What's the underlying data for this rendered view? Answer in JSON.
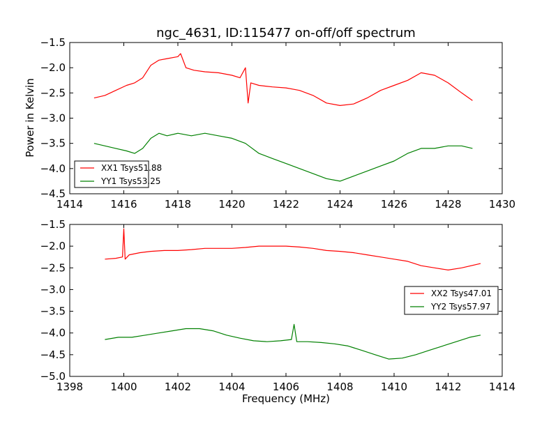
{
  "title": "ngc_4631, ID:115477 on-off/off spectrum",
  "ylabel": "Power in Kelvin",
  "xlabel": "Frequency (MHz)",
  "colors": {
    "XX": "#ff0000",
    "YY": "#008000"
  },
  "chart_data": [
    {
      "type": "line",
      "title": "ngc_4631, ID:115477 on-off/off spectrum",
      "ylabel": "Power in Kelvin",
      "xlabel": "",
      "xlim": [
        1414,
        1430
      ],
      "ylim": [
        -4.5,
        -1.5
      ],
      "xticks": [
        "1414",
        "1416",
        "1418",
        "1420",
        "1422",
        "1424",
        "1426",
        "1428",
        "1430"
      ],
      "yticks": [
        "−1.5",
        "−2.0",
        "−2.5",
        "−3.0",
        "−3.5",
        "−4.0",
        "−4.5"
      ],
      "legend": "lower-left",
      "series": [
        {
          "name": "XX1 Tsys51.88",
          "color": "#ff0000",
          "x": [
            1414.9,
            1415.3,
            1415.7,
            1416.1,
            1416.4,
            1416.7,
            1417.0,
            1417.3,
            1417.6,
            1418.0,
            1418.1,
            1418.3,
            1418.6,
            1419.0,
            1419.5,
            1420.0,
            1420.3,
            1420.5,
            1420.6,
            1420.7,
            1421.0,
            1421.5,
            1422.0,
            1422.5,
            1423.0,
            1423.5,
            1424.0,
            1424.5,
            1425.0,
            1425.5,
            1426.0,
            1426.5,
            1427.0,
            1427.5,
            1428.0,
            1428.5,
            1428.9
          ],
          "y": [
            -2.6,
            -2.55,
            -2.45,
            -2.35,
            -2.3,
            -2.2,
            -1.95,
            -1.85,
            -1.82,
            -1.78,
            -1.72,
            -2.0,
            -2.05,
            -2.08,
            -2.1,
            -2.15,
            -2.2,
            -2.0,
            -2.7,
            -2.3,
            -2.35,
            -2.38,
            -2.4,
            -2.45,
            -2.55,
            -2.7,
            -2.75,
            -2.72,
            -2.6,
            -2.45,
            -2.35,
            -2.25,
            -2.1,
            -2.15,
            -2.3,
            -2.5,
            -2.65
          ]
        },
        {
          "name": "YY1 Tsys53.25",
          "color": "#008000",
          "x": [
            1414.9,
            1415.3,
            1415.7,
            1416.1,
            1416.4,
            1416.7,
            1417.0,
            1417.3,
            1417.6,
            1418.0,
            1418.5,
            1419.0,
            1419.5,
            1420.0,
            1420.5,
            1421.0,
            1421.5,
            1422.0,
            1422.5,
            1423.0,
            1423.5,
            1424.0,
            1424.5,
            1425.0,
            1425.5,
            1426.0,
            1426.5,
            1427.0,
            1427.5,
            1428.0,
            1428.5,
            1428.9
          ],
          "y": [
            -3.5,
            -3.55,
            -3.6,
            -3.65,
            -3.7,
            -3.6,
            -3.4,
            -3.3,
            -3.35,
            -3.3,
            -3.35,
            -3.3,
            -3.35,
            -3.4,
            -3.5,
            -3.7,
            -3.8,
            -3.9,
            -4.0,
            -4.1,
            -4.2,
            -4.25,
            -4.15,
            -4.05,
            -3.95,
            -3.85,
            -3.7,
            -3.6,
            -3.6,
            -3.55,
            -3.55,
            -3.6
          ]
        }
      ]
    },
    {
      "type": "line",
      "title": "",
      "ylabel": "",
      "xlabel": "Frequency (MHz)",
      "xlim": [
        1398,
        1414
      ],
      "ylim": [
        -5.0,
        -1.5
      ],
      "xticks": [
        "1398",
        "1400",
        "1402",
        "1404",
        "1406",
        "1408",
        "1410",
        "1412",
        "1414"
      ],
      "yticks": [
        "−1.5",
        "−2.0",
        "−2.5",
        "−3.0",
        "−3.5",
        "−4.0",
        "−4.5",
        "−5.0"
      ],
      "legend": "center-right",
      "series": [
        {
          "name": "XX2 Tsys47.01",
          "color": "#ff0000",
          "x": [
            1399.3,
            1399.7,
            1399.95,
            1400.0,
            1400.05,
            1400.2,
            1400.6,
            1401.0,
            1401.5,
            1402.0,
            1402.5,
            1403.0,
            1403.5,
            1404.0,
            1404.5,
            1405.0,
            1405.5,
            1406.0,
            1406.5,
            1407.0,
            1407.5,
            1408.0,
            1408.5,
            1409.0,
            1409.5,
            1410.0,
            1410.5,
            1411.0,
            1411.5,
            1412.0,
            1412.5,
            1413.2
          ],
          "y": [
            -2.3,
            -2.28,
            -2.25,
            -1.6,
            -2.3,
            -2.2,
            -2.15,
            -2.12,
            -2.1,
            -2.1,
            -2.08,
            -2.05,
            -2.05,
            -2.05,
            -2.03,
            -2.0,
            -2.0,
            -2.0,
            -2.02,
            -2.05,
            -2.1,
            -2.12,
            -2.15,
            -2.2,
            -2.25,
            -2.3,
            -2.35,
            -2.45,
            -2.5,
            -2.55,
            -2.5,
            -2.4
          ]
        },
        {
          "name": "YY2 Tsys57.97",
          "color": "#008000",
          "x": [
            1399.3,
            1399.8,
            1400.3,
            1400.8,
            1401.3,
            1401.8,
            1402.3,
            1402.8,
            1403.3,
            1403.8,
            1404.3,
            1404.8,
            1405.3,
            1405.8,
            1406.2,
            1406.3,
            1406.4,
            1406.8,
            1407.3,
            1407.8,
            1408.3,
            1408.8,
            1409.3,
            1409.8,
            1410.3,
            1410.8,
            1411.3,
            1411.8,
            1412.3,
            1412.8,
            1413.2
          ],
          "y": [
            -4.15,
            -4.1,
            -4.1,
            -4.05,
            -4.0,
            -3.95,
            -3.9,
            -3.9,
            -3.95,
            -4.05,
            -4.12,
            -4.18,
            -4.2,
            -4.18,
            -4.15,
            -3.8,
            -4.2,
            -4.2,
            -4.22,
            -4.25,
            -4.3,
            -4.4,
            -4.5,
            -4.6,
            -4.58,
            -4.5,
            -4.4,
            -4.3,
            -4.2,
            -4.1,
            -4.05
          ]
        }
      ]
    }
  ]
}
